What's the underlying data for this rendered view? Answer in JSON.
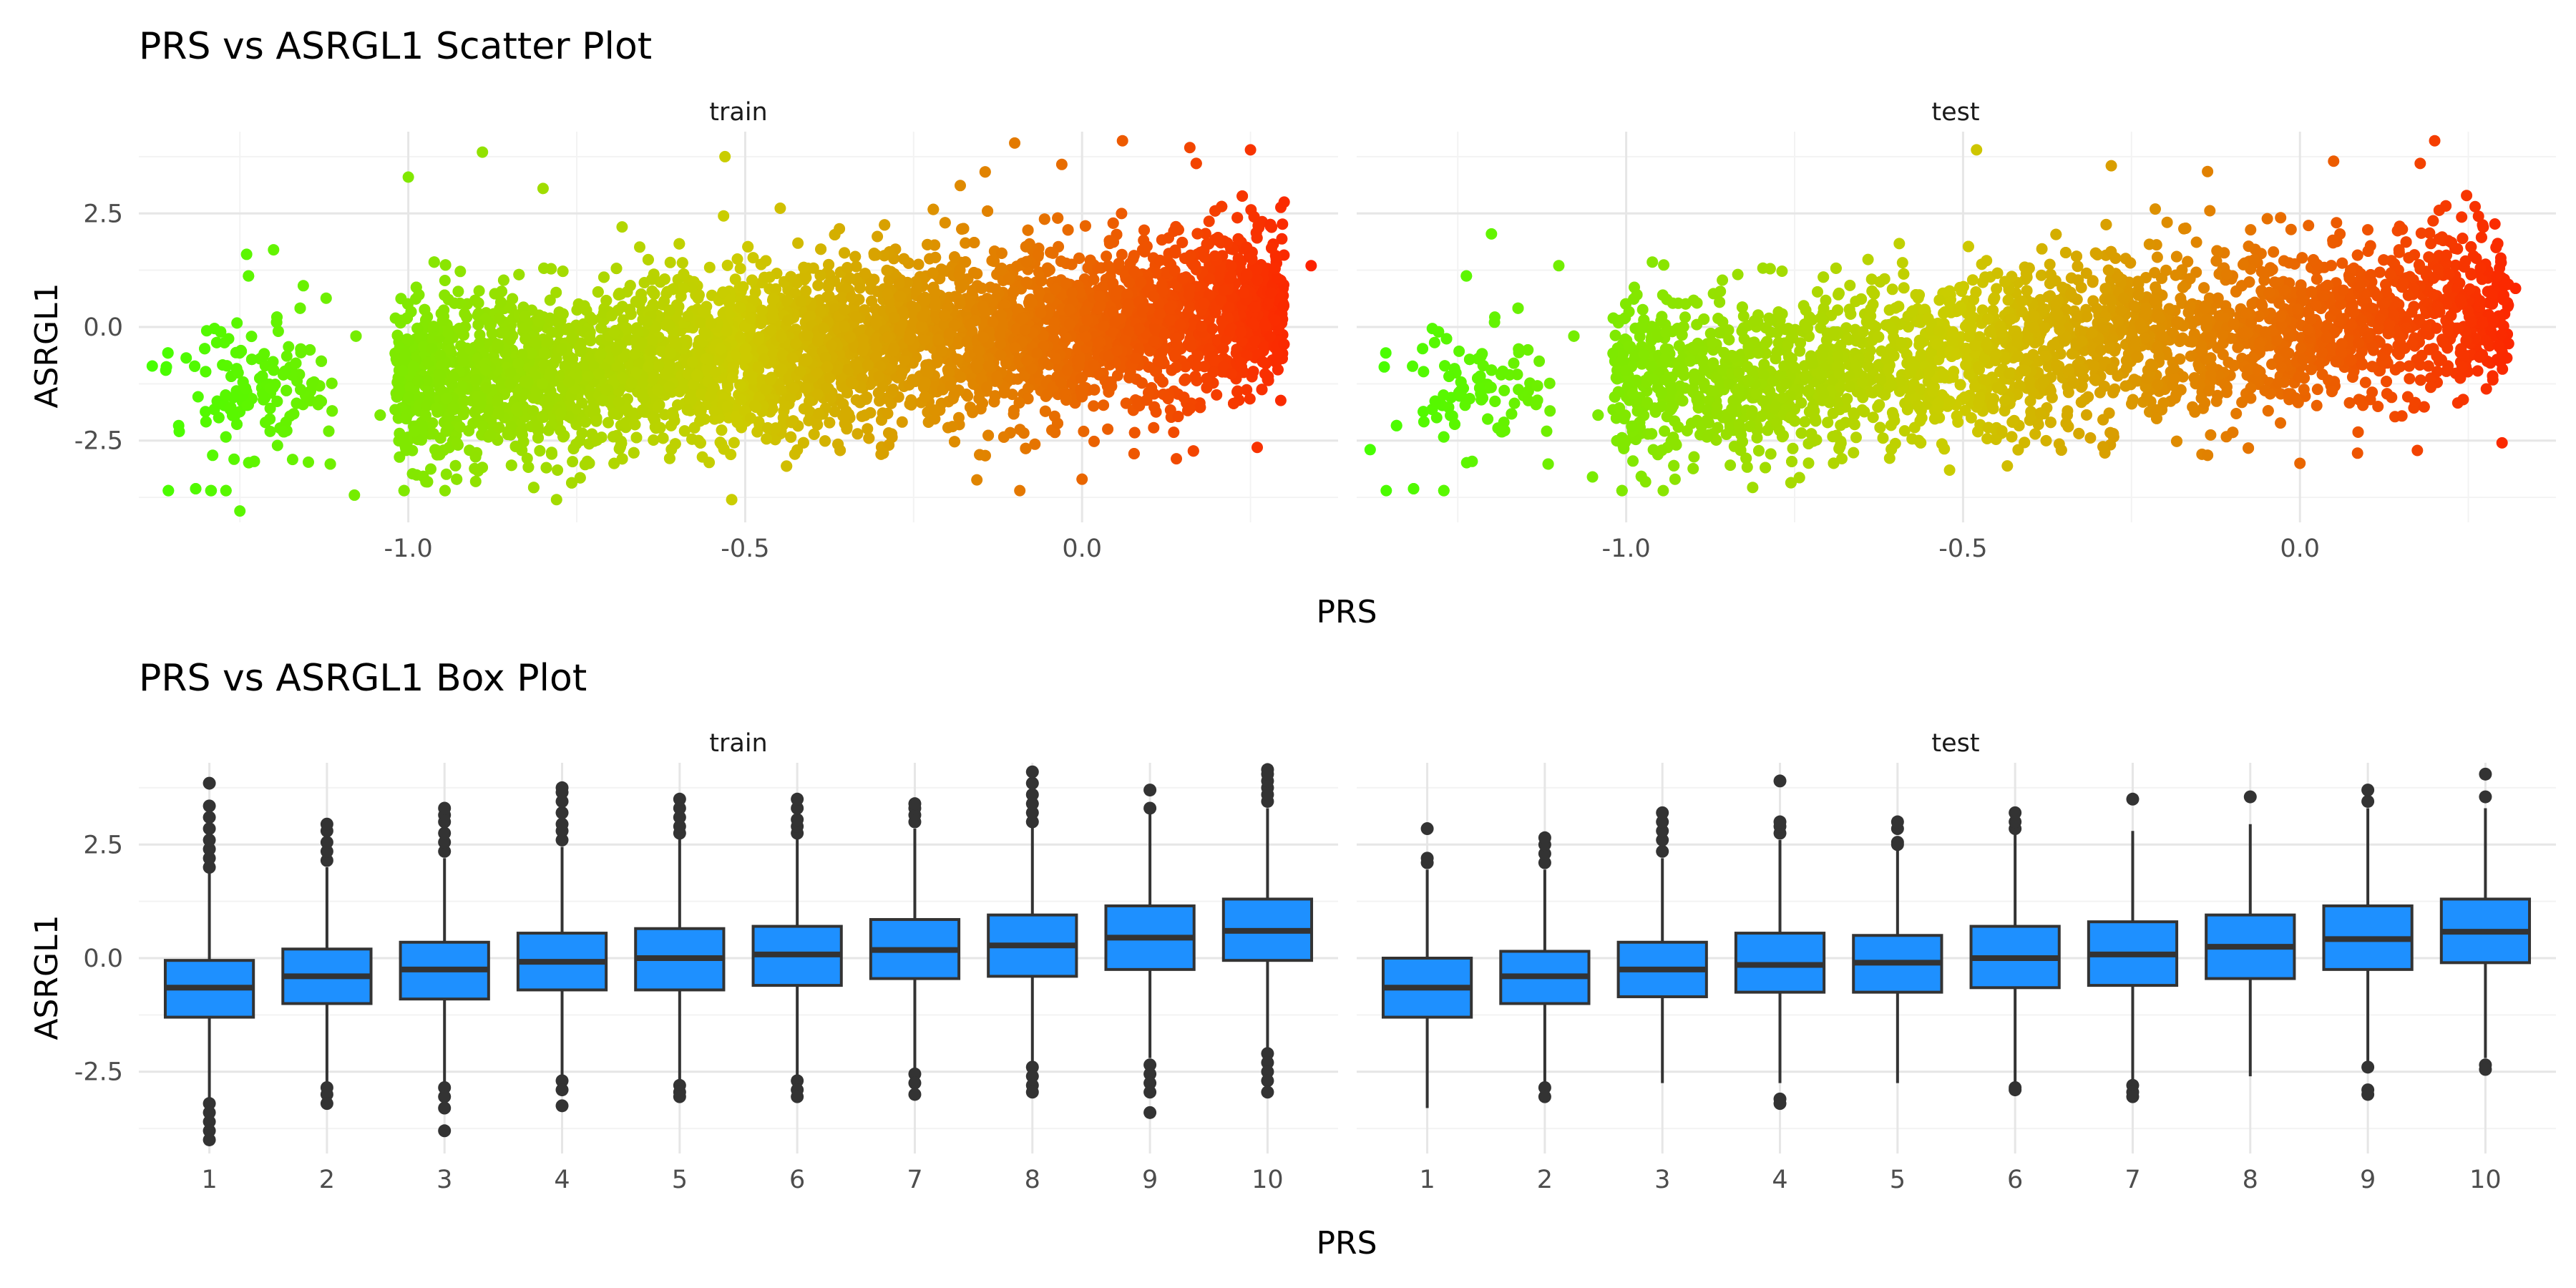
{
  "chart_data": [
    {
      "type": "scatter",
      "title": "PRS vs ASRGL1 Scatter Plot",
      "xlabel": "PRS",
      "ylabel": "ASRGL1",
      "facets": [
        "train",
        "test"
      ],
      "xlim": [
        -1.4,
        0.38
      ],
      "ylim": [
        -4.3,
        4.3
      ],
      "x_ticks": [
        -1.0,
        -0.5,
        0.0
      ],
      "x_tick_labels": [
        "-1.0",
        "-0.5",
        "0.0"
      ],
      "y_ticks": [
        -2.5,
        0.0,
        2.5
      ],
      "y_tick_labels": [
        "-2.5",
        "0.0",
        "2.5"
      ],
      "color_scale": {
        "low": "#44ff00",
        "mid": "#cccc00",
        "high": "#ff1a00",
        "by": "PRS"
      },
      "trend": {
        "slope": 1.25,
        "intercept": 0.0
      },
      "series": [
        {
          "name": "train",
          "points": [
            [
              -1.36,
              -0.95
            ],
            [
              -1.34,
              -2.3
            ],
            [
              -1.24,
              1.6
            ],
            [
              -1.2,
              1.7
            ],
            [
              -1.25,
              -4.05
            ],
            [
              -1.08,
              -3.7
            ],
            [
              -0.89,
              3.85
            ],
            [
              -1.0,
              3.3
            ],
            [
              -0.9,
              -3.4
            ],
            [
              -0.8,
              3.05
            ],
            [
              -0.78,
              -3.8
            ],
            [
              -0.52,
              -3.8
            ],
            [
              -0.53,
              3.75
            ],
            [
              -0.1,
              4.05
            ],
            [
              0.06,
              4.1
            ],
            [
              0.16,
              3.95
            ],
            [
              0.25,
              3.9
            ],
            [
              0.34,
              1.35
            ],
            [
              0.3,
              2.75
            ],
            [
              0.0,
              -3.35
            ],
            [
              0.14,
              -2.9
            ],
            [
              0.26,
              -2.65
            ]
          ]
        },
        {
          "name": "test",
          "points": [
            [
              -1.38,
              -2.7
            ],
            [
              -1.2,
              2.05
            ],
            [
              -1.1,
              1.35
            ],
            [
              -1.05,
              -3.3
            ],
            [
              -0.99,
              -2.95
            ],
            [
              -0.48,
              3.9
            ],
            [
              -0.52,
              -3.15
            ],
            [
              -0.28,
              3.55
            ],
            [
              0.0,
              -3.0
            ],
            [
              0.2,
              4.1
            ],
            [
              0.32,
              0.85
            ],
            [
              0.26,
              2.65
            ],
            [
              0.3,
              -2.55
            ],
            [
              0.05,
              3.65
            ]
          ]
        }
      ]
    },
    {
      "type": "box",
      "title": "PRS vs ASRGL1 Box Plot",
      "xlabel": "PRS",
      "ylabel": "ASRGL1",
      "facets": [
        "train",
        "test"
      ],
      "categories": [
        "1",
        "2",
        "3",
        "4",
        "5",
        "6",
        "7",
        "8",
        "9",
        "10"
      ],
      "ylim": [
        -4.3,
        4.3
      ],
      "y_ticks": [
        -2.5,
        0.0,
        2.5
      ],
      "y_tick_labels": [
        "-2.5",
        "0.0",
        "2.5"
      ],
      "box_color": "#1e90ff",
      "series": [
        {
          "name": "train",
          "boxes": [
            {
              "q1": -1.3,
              "median": -0.65,
              "q3": -0.05,
              "lower": -3.1,
              "upper": 1.9,
              "outliers": [
                2.0,
                2.2,
                2.4,
                2.6,
                2.85,
                3.1,
                3.35,
                3.85,
                -3.2,
                -3.4,
                -3.6,
                -3.8,
                -4.0
              ]
            },
            {
              "q1": -1.0,
              "median": -0.4,
              "q3": 0.2,
              "lower": -2.8,
              "upper": 2.0,
              "outliers": [
                2.15,
                2.35,
                2.55,
                2.8,
                2.95,
                -2.85,
                -3.0,
                -3.2
              ]
            },
            {
              "q1": -0.9,
              "median": -0.25,
              "q3": 0.35,
              "lower": -2.75,
              "upper": 2.2,
              "outliers": [
                2.35,
                2.55,
                2.75,
                3.0,
                3.15,
                3.3,
                -2.85,
                -3.05,
                -3.3,
                -3.8
              ]
            },
            {
              "q1": -0.7,
              "median": -0.08,
              "q3": 0.55,
              "lower": -2.6,
              "upper": 2.45,
              "outliers": [
                2.6,
                2.8,
                2.95,
                3.2,
                3.45,
                3.65,
                3.75,
                -2.7,
                -2.9,
                -3.25
              ]
            },
            {
              "q1": -0.7,
              "median": 0.0,
              "q3": 0.65,
              "lower": -2.7,
              "upper": 2.65,
              "outliers": [
                2.75,
                2.9,
                3.1,
                3.3,
                3.5,
                -2.8,
                -2.95,
                -3.05
              ]
            },
            {
              "q1": -0.6,
              "median": 0.08,
              "q3": 0.7,
              "lower": -2.6,
              "upper": 2.65,
              "outliers": [
                2.75,
                2.9,
                3.05,
                3.3,
                3.5,
                -2.7,
                -2.9,
                -3.05
              ]
            },
            {
              "q1": -0.45,
              "median": 0.18,
              "q3": 0.85,
              "lower": -2.45,
              "upper": 2.85,
              "outliers": [
                3.0,
                3.15,
                3.3,
                3.4,
                -2.55,
                -2.75,
                -3.0
              ]
            },
            {
              "q1": -0.4,
              "median": 0.28,
              "q3": 0.95,
              "lower": -2.3,
              "upper": 2.9,
              "outliers": [
                3.0,
                3.2,
                3.4,
                3.6,
                3.85,
                4.1,
                -2.4,
                -2.6,
                -2.8,
                -2.95
              ]
            },
            {
              "q1": -0.25,
              "median": 0.45,
              "q3": 1.15,
              "lower": -2.2,
              "upper": 3.2,
              "outliers": [
                3.3,
                3.7,
                -2.35,
                -2.55,
                -2.75,
                -2.95,
                -3.4
              ]
            },
            {
              "q1": -0.05,
              "median": 0.6,
              "q3": 1.3,
              "lower": -2.0,
              "upper": 3.3,
              "outliers": [
                3.45,
                3.6,
                3.75,
                3.9,
                4.05,
                4.15,
                -2.1,
                -2.3,
                -2.5,
                -2.7,
                -2.95
              ]
            }
          ]
        },
        {
          "name": "test",
          "boxes": [
            {
              "q1": -1.3,
              "median": -0.65,
              "q3": 0.0,
              "lower": -3.3,
              "upper": 1.95,
              "outliers": [
                2.1,
                2.2,
                2.85
              ]
            },
            {
              "q1": -1.0,
              "median": -0.4,
              "q3": 0.15,
              "lower": -2.75,
              "upper": 1.95,
              "outliers": [
                2.1,
                2.3,
                2.5,
                2.65,
                -2.85,
                -3.05
              ]
            },
            {
              "q1": -0.85,
              "median": -0.25,
              "q3": 0.35,
              "lower": -2.75,
              "upper": 2.2,
              "outliers": [
                2.35,
                2.6,
                2.8,
                3.0,
                3.2
              ]
            },
            {
              "q1": -0.75,
              "median": -0.15,
              "q3": 0.55,
              "lower": -2.75,
              "upper": 2.6,
              "outliers": [
                2.75,
                2.9,
                3.0,
                3.9,
                -3.1,
                -3.2
              ]
            },
            {
              "q1": -0.75,
              "median": -0.1,
              "q3": 0.5,
              "lower": -2.75,
              "upper": 2.4,
              "outliers": [
                2.5,
                2.55,
                2.85,
                3.0
              ]
            },
            {
              "q1": -0.65,
              "median": 0.0,
              "q3": 0.7,
              "lower": -2.8,
              "upper": 2.75,
              "outliers": [
                2.85,
                3.0,
                3.2,
                -2.85,
                -2.9
              ]
            },
            {
              "q1": -0.6,
              "median": 0.08,
              "q3": 0.8,
              "lower": -2.7,
              "upper": 2.8,
              "outliers": [
                3.5,
                -2.8,
                -2.95,
                -3.05
              ]
            },
            {
              "q1": -0.45,
              "median": 0.25,
              "q3": 0.95,
              "lower": -2.6,
              "upper": 2.95,
              "outliers": [
                3.55
              ]
            },
            {
              "q1": -0.25,
              "median": 0.42,
              "q3": 1.15,
              "lower": -2.3,
              "upper": 3.3,
              "outliers": [
                3.45,
                3.7,
                -2.4,
                -2.9,
                -3.0
              ]
            },
            {
              "q1": -0.1,
              "median": 0.58,
              "q3": 1.3,
              "lower": -2.2,
              "upper": 3.3,
              "outliers": [
                3.55,
                4.05,
                -2.35,
                -2.45
              ]
            }
          ]
        }
      ]
    }
  ]
}
